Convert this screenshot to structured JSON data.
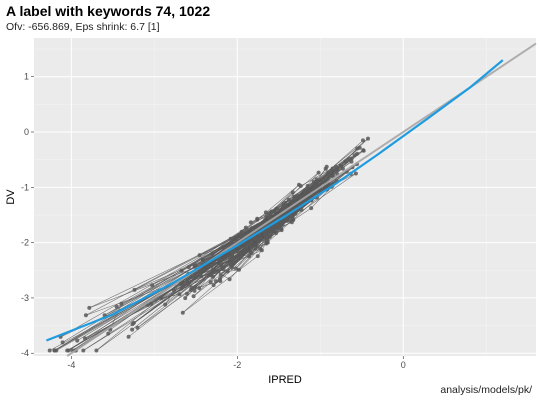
{
  "chart_data": {
    "type": "scatter",
    "title": "A label with keywords 74, 1022",
    "subtitle": "Ofv: -656.869, Eps shrink: 6.7 [1]",
    "caption": "analysis/models/pk/",
    "xlabel": "IPRED",
    "ylabel": "DV",
    "xlim": [
      -4.45,
      1.6
    ],
    "ylim": [
      -4.05,
      1.7
    ],
    "xticks": [
      -4,
      -2,
      0
    ],
    "yticks": [
      -4,
      -3,
      -2,
      -1,
      0,
      1
    ],
    "grid": true,
    "points_generated_along_trend": true,
    "n_points": 420,
    "x_range": [
      -4.3,
      1.25
    ],
    "reference_line": {
      "slope": 1,
      "intercept": 0,
      "color": "#a6a6a6"
    },
    "smooth_line": {
      "color": "#1f9be0",
      "x": [
        -4.3,
        -3.5,
        -2.8,
        -2.0,
        -1.4,
        -0.8,
        -0.3,
        0.3,
        0.8,
        1.2
      ],
      "y": [
        -3.77,
        -3.3,
        -2.75,
        -2.05,
        -1.5,
        -0.92,
        -0.4,
        0.25,
        0.8,
        1.3
      ]
    },
    "colors": {
      "points": "#595959",
      "panel": "#ebebeb",
      "grid": "#ffffff"
    }
  }
}
